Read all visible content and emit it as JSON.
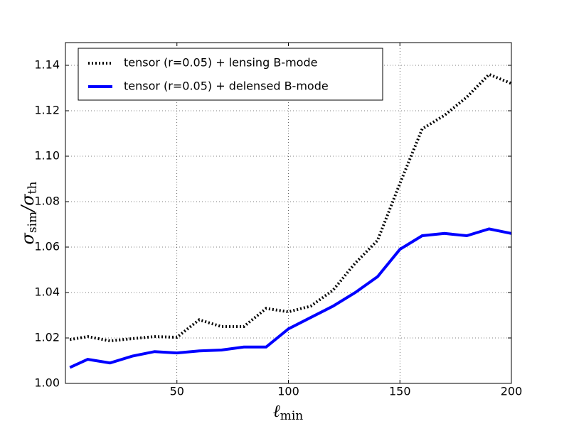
{
  "chart_data": {
    "type": "line",
    "xlabel": {
      "symbol": "ℓ",
      "sub": "min"
    },
    "ylabel": {
      "num": "σ",
      "num_sub": "sim",
      "den": "/σ",
      "den_sub": "th"
    },
    "x": [
      2,
      10,
      20,
      30,
      40,
      50,
      60,
      70,
      80,
      90,
      100,
      110,
      120,
      130,
      140,
      150,
      160,
      170,
      180,
      190,
      200
    ],
    "series": [
      {
        "name": "tensor (r=0.05) + lensing B-mode",
        "color": "#000000",
        "style": "dotted",
        "values": [
          1.0193,
          1.0206,
          1.0187,
          1.0197,
          1.0206,
          1.0203,
          1.028,
          1.025,
          1.025,
          1.033,
          1.0315,
          1.034,
          1.041,
          1.053,
          1.063,
          1.088,
          1.112,
          1.118,
          1.126,
          1.136,
          1.132
        ]
      },
      {
        "name": "tensor (r=0.05) + delensed B-mode",
        "color": "#0000ff",
        "style": "solid",
        "values": [
          1.007,
          1.0106,
          1.009,
          1.012,
          1.014,
          1.0134,
          1.0143,
          1.0147,
          1.016,
          1.016,
          1.024,
          1.029,
          1.034,
          1.04,
          1.047,
          1.059,
          1.065,
          1.066,
          1.065,
          1.068,
          1.066
        ]
      }
    ],
    "xlim": [
      0,
      200
    ],
    "ylim": [
      1.0,
      1.15
    ],
    "xticks": [
      50,
      100,
      150,
      200
    ],
    "yticks": [
      {
        "value": 1.0,
        "label": "1.00"
      },
      1.02,
      1.04,
      1.06,
      1.08,
      {
        "value": 1.1,
        "label": "1.10"
      },
      1.12,
      1.14
    ],
    "grid": true,
    "legend": "upper-left"
  }
}
